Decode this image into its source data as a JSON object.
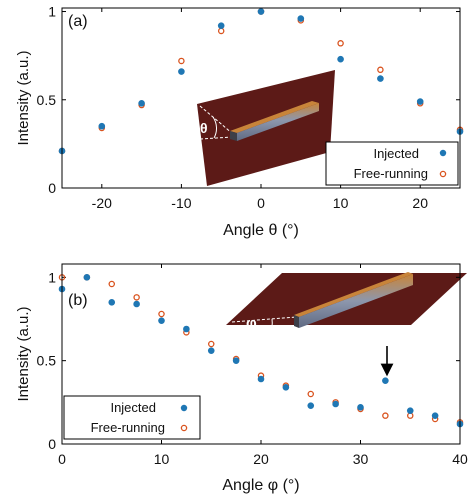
{
  "colors": {
    "injected": "#1f77b4",
    "free_running": "#d9531e",
    "inset_plane": "#5c1a17",
    "inset_bar": "#7e8ba6",
    "inset_bar_edge": "#c87a2a"
  },
  "chart_data": [
    {
      "type": "scatter",
      "panel_label": "(a)",
      "xlabel": "Angle θ (°)",
      "ylabel": "Intensity (a.u.)",
      "xlim": [
        -25,
        25
      ],
      "ylim": [
        0,
        1.02
      ],
      "xticks": [
        -20,
        -10,
        0,
        10,
        20
      ],
      "yticks": [
        0,
        0.5,
        1
      ],
      "xtick_labels": [
        "-20",
        "-10",
        "0",
        "10",
        "20"
      ],
      "ytick_labels": [
        "0",
        "0.5",
        "1"
      ],
      "grid": false,
      "legend_position": "bottom-right",
      "inset_symbol": "θ",
      "series": [
        {
          "name": "Injected",
          "marker": "filled-circle",
          "x": [
            -25,
            -20,
            -15,
            -10,
            -5,
            0,
            5,
            10,
            15,
            20,
            25
          ],
          "y": [
            0.21,
            0.35,
            0.48,
            0.66,
            0.92,
            1.0,
            0.96,
            0.73,
            0.62,
            0.49,
            0.32
          ]
        },
        {
          "name": "Free-running",
          "marker": "open-circle",
          "x": [
            -25,
            -20,
            -15,
            -10,
            -5,
            0,
            5,
            10,
            15,
            20,
            25
          ],
          "y": [
            0.21,
            0.34,
            0.47,
            0.72,
            0.89,
            1.0,
            0.95,
            0.82,
            0.67,
            0.48,
            0.33
          ]
        }
      ]
    },
    {
      "type": "scatter",
      "panel_label": "(b)",
      "xlabel": "Angle φ (°)",
      "ylabel": "Intensity (a.u.)",
      "xlim": [
        0,
        40
      ],
      "ylim": [
        0,
        1.08
      ],
      "xticks": [
        0,
        10,
        20,
        30,
        40
      ],
      "yticks": [
        0,
        0.5,
        1
      ],
      "xtick_labels": [
        "0",
        "10",
        "20",
        "30",
        "40"
      ],
      "ytick_labels": [
        "0",
        "0.5",
        "1"
      ],
      "grid": false,
      "legend_position": "bottom-left",
      "inset_symbol": "φ",
      "annotation": "arrow pointing to the Injected point at 32.5°",
      "series": [
        {
          "name": "Injected",
          "marker": "filled-circle",
          "x": [
            0,
            2.5,
            5,
            7.5,
            10,
            12.5,
            15,
            17.5,
            20,
            22.5,
            25,
            27.5,
            30,
            32.5,
            35,
            37.5,
            40
          ],
          "y": [
            0.93,
            1.0,
            0.85,
            0.84,
            0.74,
            0.69,
            0.56,
            0.5,
            0.39,
            0.34,
            0.23,
            0.24,
            0.22,
            0.38,
            0.2,
            0.17,
            0.12
          ]
        },
        {
          "name": "Free-running",
          "marker": "open-circle",
          "x": [
            0,
            2.5,
            5,
            7.5,
            10,
            12.5,
            15,
            17.5,
            20,
            22.5,
            25,
            27.5,
            30,
            32.5,
            35,
            37.5,
            40
          ],
          "y": [
            1.0,
            1.0,
            0.96,
            0.88,
            0.78,
            0.67,
            0.6,
            0.51,
            0.41,
            0.35,
            0.3,
            0.25,
            0.21,
            0.17,
            0.17,
            0.15,
            0.13
          ]
        }
      ]
    }
  ]
}
